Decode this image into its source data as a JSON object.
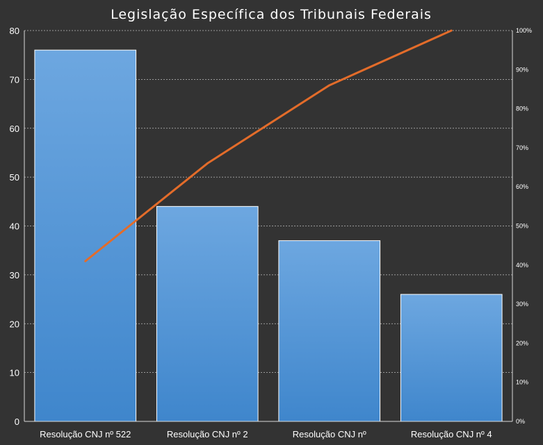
{
  "chart_data": {
    "type": "bar",
    "title": "Legislação Específica dos Tribunais Federais",
    "categories": [
      "Resolução CNJ nº 522",
      "Resolução CNJ nº 2",
      "Resolução CNJ nº",
      "Resolução CNJ nº 4"
    ],
    "series": [
      {
        "type": "bar",
        "axis": "left",
        "values": [
          76,
          44,
          37,
          26
        ]
      },
      {
        "type": "line",
        "axis": "right",
        "values": [
          41,
          66,
          86,
          100
        ]
      }
    ],
    "ylim": [
      0,
      80
    ],
    "y_ticks": [
      "0",
      "10",
      "20",
      "30",
      "40",
      "50",
      "60",
      "70",
      "80"
    ],
    "y2lim": [
      0,
      100
    ],
    "y2_ticks": [
      "0%",
      "10%",
      "20%",
      "30%",
      "40%",
      "50%",
      "60%",
      "70%",
      "80%",
      "90%",
      "100%"
    ],
    "grid": true,
    "legend": "none",
    "colors": {
      "background": "#333333",
      "bar_top": "#6da7e0",
      "bar_bottom": "#3f86cc",
      "bar_border": "#ffffff",
      "line": "#e36c2a",
      "grid": "#bfbfbf",
      "text": "#ffffff"
    }
  }
}
